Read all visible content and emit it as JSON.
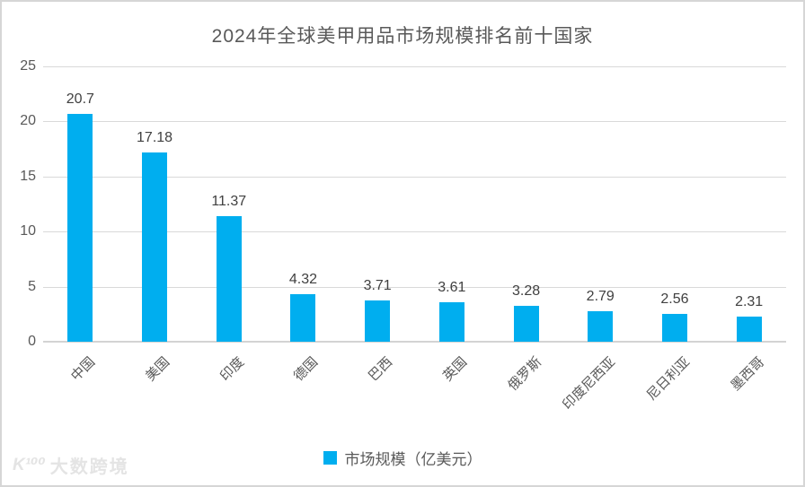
{
  "chart_data": {
    "type": "bar",
    "title": "2024年全球美甲用品市场规模排名前十国家",
    "categories": [
      "中国",
      "美国",
      "印度",
      "德国",
      "巴西",
      "英国",
      "俄罗斯",
      "印度尼西亚",
      "尼日利亚",
      "墨西哥"
    ],
    "values": [
      20.7,
      17.18,
      11.37,
      4.32,
      3.71,
      3.61,
      3.28,
      2.79,
      2.56,
      2.31
    ],
    "value_labels": [
      "20.7",
      "17.18",
      "11.37",
      "4.32",
      "3.71",
      "3.61",
      "3.28",
      "2.79",
      "2.56",
      "2.31"
    ],
    "xlabel": "",
    "ylabel": "",
    "ylim": [
      0,
      25
    ],
    "yticks": [
      0,
      5,
      10,
      15,
      20,
      25
    ],
    "grid": "horizontal",
    "legend_position": "bottom",
    "legend": [
      "市场规模（亿美元）"
    ]
  },
  "legend": {
    "label": "市场规模（亿美元）"
  },
  "watermark": {
    "logo": "K¹⁰⁰",
    "text": "大数跨境"
  },
  "colors": {
    "bar": "#00AEEF",
    "title_text": "#595959",
    "axis_text": "#595959",
    "value_text": "#404040",
    "gridline": "#d9d9d9"
  }
}
